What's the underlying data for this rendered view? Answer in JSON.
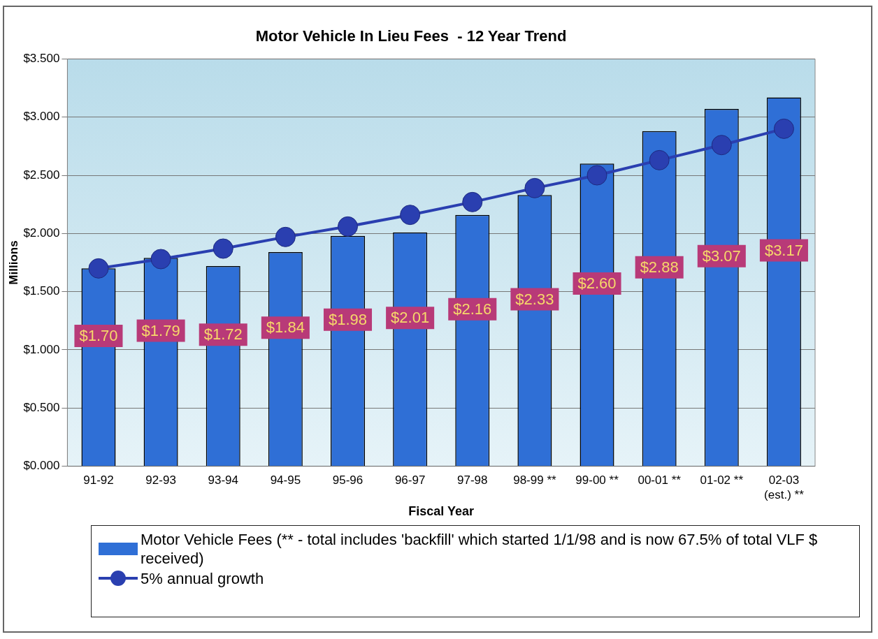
{
  "chart_data": {
    "type": "bar",
    "title": "Motor Vehicle In Lieu Fees  - 12 Year Trend",
    "xlabel": "Fiscal Year",
    "ylabel": "Millions",
    "categories": [
      "91-92",
      "92-93",
      "93-94",
      "94-95",
      "95-96",
      "96-97",
      "97-98",
      "98-99 **",
      "99-00 **",
      "00-01 **",
      "01-02 **",
      "02-03 (est.) **"
    ],
    "series": [
      {
        "name": "Motor Vehicle Fees (** - total includes 'backfill' which started 1/1/98 and is now 67.5% of total VLF $ received)",
        "color": "#2f6fd6",
        "values": [
          1.7,
          1.79,
          1.72,
          1.84,
          1.98,
          2.01,
          2.16,
          2.33,
          2.6,
          2.88,
          3.07,
          3.17
        ],
        "value_labels": [
          "$1.70",
          "$1.79",
          "$1.72",
          "$1.84",
          "$1.98",
          "$2.01",
          "$2.16",
          "$2.33",
          "$2.60",
          "$2.88",
          "$3.07",
          "$3.17"
        ]
      },
      {
        "type": "line",
        "name": "5% annual growth",
        "color": "#2a3fb0",
        "marker": "circle",
        "values": [
          1.7,
          1.78,
          1.87,
          1.97,
          2.06,
          2.16,
          2.27,
          2.39,
          2.5,
          2.63,
          2.76,
          2.9
        ]
      }
    ],
    "ylim": [
      0,
      3.5
    ],
    "yticks": [
      {
        "value": 0,
        "label": "$0.000"
      },
      {
        "value": 0.5,
        "label": "$0.500"
      },
      {
        "value": 1,
        "label": "$1.000"
      },
      {
        "value": 1.5,
        "label": "$1.500"
      },
      {
        "value": 2,
        "label": "$2.000"
      },
      {
        "value": 2.5,
        "label": "$2.500"
      },
      {
        "value": 3,
        "label": "$3.000"
      },
      {
        "value": 3.5,
        "label": "$3.500"
      }
    ],
    "grid": "y",
    "legend": "bottom"
  }
}
